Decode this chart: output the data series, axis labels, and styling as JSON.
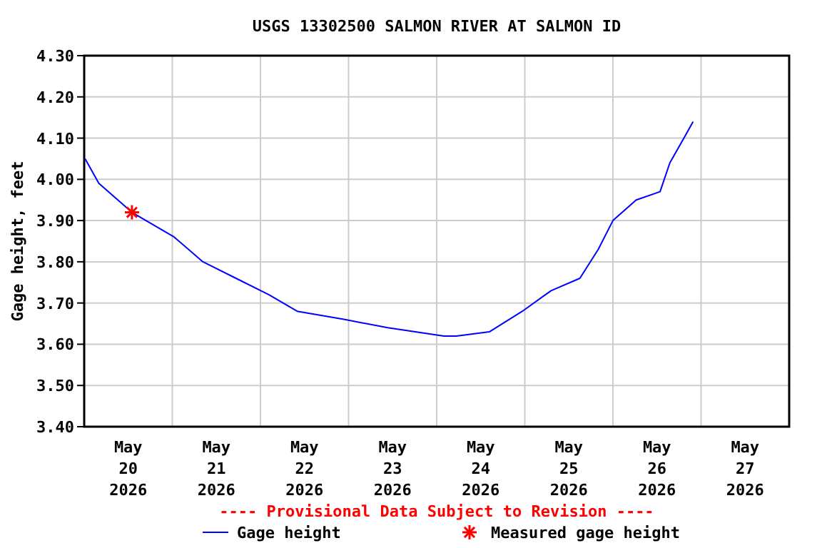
{
  "chart_data": {
    "type": "line",
    "title": "USGS 13302500 SALMON RIVER AT SALMON ID",
    "ylabel": "Gage height, feet",
    "annotations": [
      "---- Provisional Data Subject to Revision ----"
    ],
    "xlim": [
      "2026-05-20T00:00",
      "2026-05-28T00:00"
    ],
    "xticks": [
      {
        "value": "2026-05-20T00:00",
        "label": null
      },
      {
        "value": "2026-05-20T12:00",
        "label": "May\n20\n2026"
      },
      {
        "value": "2026-05-21T00:00",
        "label": null
      },
      {
        "value": "2026-05-21T12:00",
        "label": "May\n21\n2026"
      },
      {
        "value": "2026-05-22T00:00",
        "label": null
      },
      {
        "value": "2026-05-22T12:00",
        "label": "May\n22\n2026"
      },
      {
        "value": "2026-05-23T00:00",
        "label": null
      },
      {
        "value": "2026-05-23T12:00",
        "label": "May\n23\n2026"
      },
      {
        "value": "2026-05-24T00:00",
        "label": null
      },
      {
        "value": "2026-05-24T12:00",
        "label": "May\n24\n2026"
      },
      {
        "value": "2026-05-25T00:00",
        "label": null
      },
      {
        "value": "2026-05-25T12:00",
        "label": "May\n25\n2026"
      },
      {
        "value": "2026-05-26T00:00",
        "label": null
      },
      {
        "value": "2026-05-26T12:00",
        "label": "May\n26\n2026"
      },
      {
        "value": "2026-05-27T00:00",
        "label": null
      },
      {
        "value": "2026-05-27T12:00",
        "label": "May\n27\n2026"
      },
      {
        "value": "2026-05-28T00:00",
        "label": null
      }
    ],
    "ylim": [
      3.4,
      4.3
    ],
    "yticks": [
      {
        "value": 3.4,
        "label": "3.40"
      },
      {
        "value": 3.5,
        "label": "3.50"
      },
      {
        "value": 3.6,
        "label": "3.60"
      },
      {
        "value": 3.7,
        "label": "3.70"
      },
      {
        "value": 3.8,
        "label": "3.80"
      },
      {
        "value": 3.9,
        "label": "3.90"
      },
      {
        "value": 4.0,
        "label": "4.00"
      },
      {
        "value": 4.1,
        "label": "4.10"
      },
      {
        "value": 4.2,
        "label": "4.20"
      },
      {
        "value": 4.3,
        "label": "4.30"
      }
    ],
    "grid": true,
    "legend": "bottom",
    "series": [
      {
        "name": "Gage height",
        "color": "#0000ff",
        "marker": "none",
        "x": [
          "2026-05-20T00:15",
          "2026-05-20T04:00",
          "2026-05-20T13:00",
          "2026-05-21T00:30",
          "2026-05-21T08:20",
          "2026-05-21T17:20",
          "2026-05-22T02:20",
          "2026-05-22T10:00",
          "2026-05-22T23:00",
          "2026-05-23T10:40",
          "2026-05-24T02:00",
          "2026-05-24T05:20",
          "2026-05-24T14:20",
          "2026-05-24T23:20",
          "2026-05-25T07:10",
          "2026-05-25T15:00",
          "2026-05-25T20:00",
          "2026-05-26T00:00",
          "2026-05-26T06:20",
          "2026-05-26T12:50",
          "2026-05-26T15:30",
          "2026-05-26T19:20",
          "2026-05-26T21:50"
        ],
        "values": [
          4.05,
          3.99,
          3.92,
          3.86,
          3.8,
          3.76,
          3.72,
          3.68,
          3.66,
          3.64,
          3.62,
          3.62,
          3.63,
          3.68,
          3.73,
          3.76,
          3.83,
          3.9,
          3.95,
          3.97,
          4.04,
          4.1,
          4.14
        ]
      },
      {
        "name": "Measured gage height",
        "color": "#ff0000",
        "type": "scatter",
        "marker": "cross",
        "x": [
          "2026-05-20T13:00"
        ],
        "values": [
          3.92
        ]
      }
    ]
  }
}
